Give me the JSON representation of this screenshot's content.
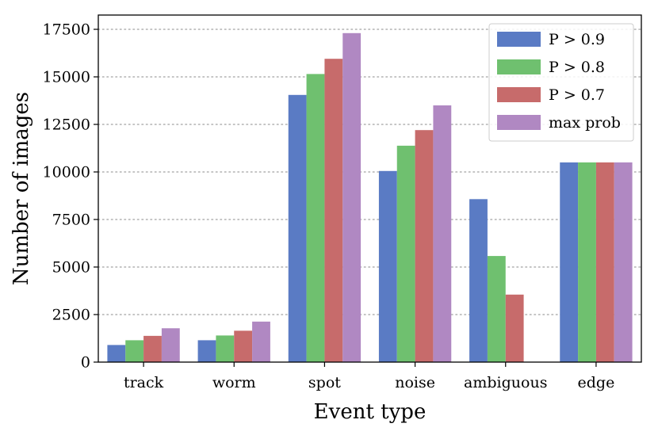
{
  "chart_data": {
    "type": "bar",
    "title": "",
    "xlabel": "Event type",
    "ylabel": "Number of images",
    "categories": [
      "track",
      "worm",
      "spot",
      "noise",
      "ambiguous",
      "edge"
    ],
    "ylim": [
      0,
      18250
    ],
    "yticks": [
      0,
      2500,
      5000,
      7500,
      10000,
      12500,
      15000,
      17500
    ],
    "ytick_labels": [
      "0",
      "2500",
      "5000",
      "7500",
      "10000",
      "12500",
      "15000",
      "17500"
    ],
    "grid": "horizontal, dotted",
    "legend_position": "top-right",
    "series": [
      {
        "name": "P > 0.9",
        "color": "#5a7bc4",
        "values": [
          900,
          1150,
          14050,
          10050,
          8570,
          10500
        ]
      },
      {
        "name": "P > 0.8",
        "color": "#6fc06f",
        "values": [
          1150,
          1400,
          15150,
          11380,
          5580,
          10500
        ]
      },
      {
        "name": "P > 0.7",
        "color": "#c76b6b",
        "values": [
          1380,
          1650,
          15950,
          12200,
          3550,
          10500
        ]
      },
      {
        "name": "max prob",
        "color": "#b088c2",
        "values": [
          1780,
          2130,
          17300,
          13500,
          0,
          10500
        ]
      }
    ]
  }
}
